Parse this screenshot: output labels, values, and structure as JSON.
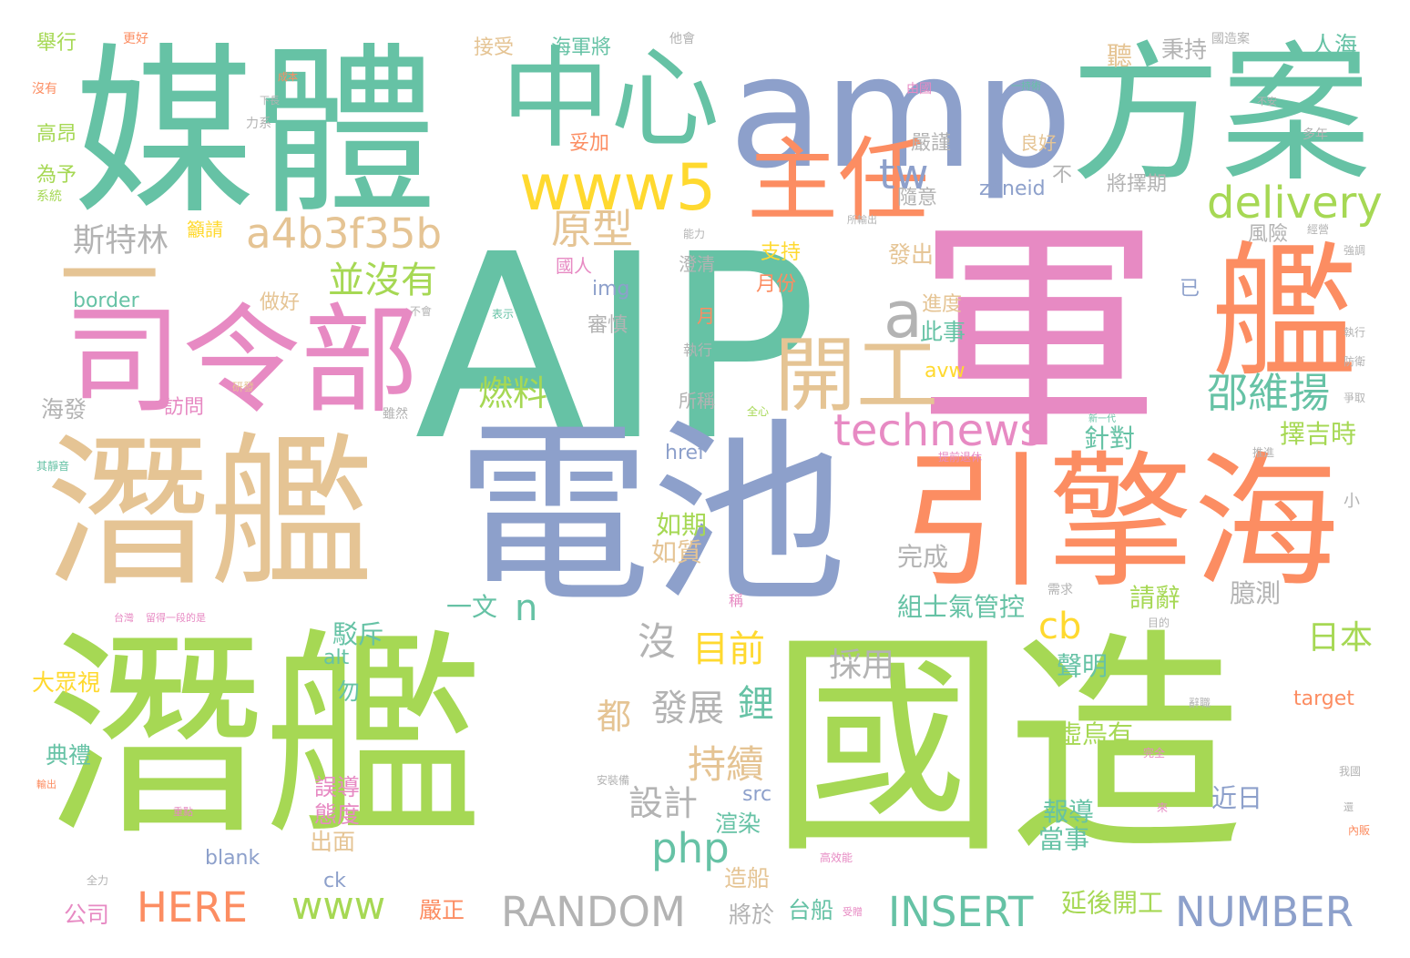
{
  "palette": {
    "teal": "#66c2a5",
    "orange": "#fc8d62",
    "blue": "#8da0cb",
    "pink": "#e78ac3",
    "green": "#a6d854",
    "yellow": "#ffd92f",
    "tan": "#e5c494",
    "gray": "#b3b3b3"
  },
  "words": [
    {
      "text": "AIP",
      "color": "#66c2a5"
    },
    {
      "text": "軍",
      "color": "#e78ac3"
    },
    {
      "text": "國造",
      "color": "#a6d854"
    },
    {
      "text": "潛艦",
      "color": "#a6d854"
    },
    {
      "text": "電池",
      "color": "#8da0cb"
    },
    {
      "text": "潛艦",
      "color": "#e5c494"
    },
    {
      "text": "媒體",
      "color": "#66c2a5"
    },
    {
      "text": "amp",
      "color": "#8da0cb"
    },
    {
      "text": "方案",
      "color": "#66c2a5"
    },
    {
      "text": "引擎海",
      "color": "#fc8d62"
    },
    {
      "text": "艦",
      "color": "#fc8d62"
    },
    {
      "text": "一",
      "color": "#e5c494"
    },
    {
      "text": "司令部",
      "color": "#e78ac3"
    },
    {
      "text": "中心",
      "color": "#66c2a5"
    },
    {
      "text": "主任",
      "color": "#fc8d62"
    },
    {
      "text": "www5",
      "color": "#ffd92f"
    },
    {
      "text": "開工",
      "color": "#e5c494"
    },
    {
      "text": "a",
      "color": "#b3b3b3"
    },
    {
      "text": "a4b3f35b",
      "color": "#e5c494"
    },
    {
      "text": "delivery",
      "color": "#a6d854"
    },
    {
      "text": "technews",
      "color": "#e78ac3"
    },
    {
      "text": "邵維揚",
      "color": "#66c2a5"
    },
    {
      "text": "原型",
      "color": "#e5c494"
    },
    {
      "text": "並沒有",
      "color": "#a6d854"
    },
    {
      "text": "斯特林",
      "color": "#b3b3b3"
    },
    {
      "text": "tw",
      "color": "#8da0cb"
    },
    {
      "text": "RANDOM",
      "color": "#b3b3b3"
    },
    {
      "text": "NUMBER",
      "color": "#8da0cb"
    },
    {
      "text": "INSERT",
      "color": "#66c2a5"
    },
    {
      "text": "HERE",
      "color": "#fc8d62"
    },
    {
      "text": "www",
      "color": "#a6d854"
    },
    {
      "text": "php",
      "color": "#66c2a5"
    },
    {
      "text": "cb",
      "color": "#ffd92f"
    },
    {
      "text": "持續",
      "color": "#e5c494"
    },
    {
      "text": "發展",
      "color": "#b3b3b3"
    },
    {
      "text": "鋰",
      "color": "#66c2a5"
    },
    {
      "text": "設計",
      "color": "#b3b3b3"
    },
    {
      "text": "目前",
      "color": "#ffd92f"
    },
    {
      "text": "沒",
      "color": "#b3b3b3"
    },
    {
      "text": "燃料",
      "color": "#a6d854"
    },
    {
      "text": "都",
      "color": "#e5c494"
    },
    {
      "text": "採用",
      "color": "#b3b3b3"
    },
    {
      "text": "n",
      "color": "#66c2a5"
    },
    {
      "text": "日本",
      "color": "#a6d854"
    },
    {
      "text": "擇吉時",
      "color": "#a6d854"
    },
    {
      "text": "針對",
      "color": "#66c2a5"
    },
    {
      "text": "延後開工",
      "color": "#a6d854"
    },
    {
      "text": "組士氣管控",
      "color": "#66c2a5"
    },
    {
      "text": "虛烏有",
      "color": "#a6d854"
    },
    {
      "text": "近日",
      "color": "#8da0cb"
    },
    {
      "text": "請辭",
      "color": "#a6d854"
    },
    {
      "text": "臆測",
      "color": "#b3b3b3"
    },
    {
      "text": "報導",
      "color": "#66c2a5"
    },
    {
      "text": "當事",
      "color": "#66c2a5"
    },
    {
      "text": "聲明",
      "color": "#66c2a5"
    },
    {
      "text": "完成",
      "color": "#b3b3b3"
    },
    {
      "text": "如期",
      "color": "#a6d854"
    },
    {
      "text": "如質",
      "color": "#e5c494"
    },
    {
      "text": "一文",
      "color": "#66c2a5"
    },
    {
      "text": "駁斥",
      "color": "#66c2a5"
    },
    {
      "text": "誤導",
      "color": "#e78ac3"
    },
    {
      "text": "態度",
      "color": "#e78ac3"
    },
    {
      "text": "出面",
      "color": "#e5c494"
    },
    {
      "text": "渲染",
      "color": "#66c2a5"
    },
    {
      "text": "造船",
      "color": "#e5c494"
    },
    {
      "text": "台船",
      "color": "#66c2a5"
    },
    {
      "text": "將於",
      "color": "#b3b3b3"
    },
    {
      "text": "嚴正",
      "color": "#fc8d62"
    },
    {
      "text": "公司",
      "color": "#e78ac3"
    },
    {
      "text": "典禮",
      "color": "#66c2a5"
    },
    {
      "text": "大眾視",
      "color": "#ffd92f"
    },
    {
      "text": "勿",
      "color": "#66c2a5"
    },
    {
      "text": "alt",
      "color": "#66c2a5"
    },
    {
      "text": "src",
      "color": "#8da0cb"
    },
    {
      "text": "ck",
      "color": "#8da0cb"
    },
    {
      "text": "blank",
      "color": "#8da0cb"
    },
    {
      "text": "href",
      "color": "#8da0cb"
    },
    {
      "text": "target",
      "color": "#fc8d62"
    },
    {
      "text": "avw",
      "color": "#ffd92f"
    },
    {
      "text": "img",
      "color": "#8da0cb"
    },
    {
      "text": "border",
      "color": "#66c2a5"
    },
    {
      "text": "zoneid",
      "color": "#8da0cb"
    },
    {
      "text": "海發",
      "color": "#b3b3b3"
    },
    {
      "text": "訪問",
      "color": "#e78ac3"
    },
    {
      "text": "做好",
      "color": "#e5c494"
    },
    {
      "text": "審慎",
      "color": "#b3b3b3"
    },
    {
      "text": "月份",
      "color": "#fc8d62"
    },
    {
      "text": "支持",
      "color": "#ffd92f"
    },
    {
      "text": "國人",
      "color": "#e78ac3"
    },
    {
      "text": "澄清",
      "color": "#b3b3b3"
    },
    {
      "text": "月",
      "color": "#fc8d62"
    },
    {
      "text": "執行",
      "color": "#b3b3b3"
    },
    {
      "text": "所稱",
      "color": "#b3b3b3"
    },
    {
      "text": "此事",
      "color": "#66c2a5"
    },
    {
      "text": "進度",
      "color": "#e5c494"
    },
    {
      "text": "發出",
      "color": "#e5c494"
    },
    {
      "text": "隨意",
      "color": "#b3b3b3"
    },
    {
      "text": "嚴謹",
      "color": "#b3b3b3"
    },
    {
      "text": "不",
      "color": "#b3b3b3"
    },
    {
      "text": "已",
      "color": "#8da0cb"
    },
    {
      "text": "風險",
      "color": "#b3b3b3"
    },
    {
      "text": "將擇期",
      "color": "#b3b3b3"
    },
    {
      "text": "良好",
      "color": "#e5c494"
    },
    {
      "text": "秉持",
      "color": "#b3b3b3"
    },
    {
      "text": "聽",
      "color": "#e5c494"
    },
    {
      "text": "人海",
      "color": "#66c2a5"
    },
    {
      "text": "海軍將",
      "color": "#66c2a5"
    },
    {
      "text": "接受",
      "color": "#e5c494"
    },
    {
      "text": "妥加",
      "color": "#fc8d62"
    },
    {
      "text": "舉行",
      "color": "#a6d854"
    },
    {
      "text": "高昂",
      "color": "#a6d854"
    },
    {
      "text": "為予",
      "color": "#a6d854"
    },
    {
      "text": "籲請",
      "color": "#ffd92f"
    },
    {
      "text": "小",
      "color": "#b3b3b3"
    },
    {
      "text": "多年",
      "color": "#b3b3b3"
    },
    {
      "text": "更好",
      "color": "#fc8d62"
    },
    {
      "text": "他會",
      "color": "#b3b3b3"
    },
    {
      "text": "國造案",
      "color": "#b3b3b3"
    },
    {
      "text": "沒有",
      "color": "#fc8d62"
    },
    {
      "text": "系統",
      "color": "#a6d854"
    },
    {
      "text": "研發",
      "color": "#e5c494"
    },
    {
      "text": "雖然",
      "color": "#b3b3b3"
    },
    {
      "text": "稱",
      "color": "#e78ac3"
    },
    {
      "text": "全力",
      "color": "#b3b3b3"
    },
    {
      "text": "高效能",
      "color": "#e78ac3"
    },
    {
      "text": "安裝備",
      "color": "#b3b3b3"
    },
    {
      "text": "完全",
      "color": "#e78ac3"
    },
    {
      "text": "我國",
      "color": "#b3b3b3"
    },
    {
      "text": "不會",
      "color": "#b3b3b3"
    },
    {
      "text": "表示",
      "color": "#66c2a5"
    },
    {
      "text": "目的",
      "color": "#b3b3b3"
    },
    {
      "text": "辭職",
      "color": "#b3b3b3"
    },
    {
      "text": "防衛",
      "color": "#b3b3b3"
    },
    {
      "text": "爭取",
      "color": "#b3b3b3"
    },
    {
      "text": "推進",
      "color": "#b3b3b3"
    },
    {
      "text": "強調",
      "color": "#b3b3b3"
    },
    {
      "text": "經營",
      "color": "#b3b3b3"
    },
    {
      "text": "能力",
      "color": "#b3b3b3"
    },
    {
      "text": "所輸出",
      "color": "#b3b3b3"
    },
    {
      "text": "由國",
      "color": "#e78ac3"
    },
    {
      "text": "力系",
      "color": "#b3b3b3"
    },
    {
      "text": "成本",
      "color": "#fc8d62"
    },
    {
      "text": "下長",
      "color": "#b3b3b3"
    },
    {
      "text": "執行",
      "color": "#b3b3b3"
    },
    {
      "text": "一持術",
      "color": "#66c2a5"
    },
    {
      "text": "不安",
      "color": "#b3b3b3"
    },
    {
      "text": "全心",
      "color": "#a6d854"
    },
    {
      "text": "提前退休",
      "color": "#e78ac3"
    },
    {
      "text": "新一代",
      "color": "#66c2a5"
    },
    {
      "text": "需求",
      "color": "#b3b3b3"
    },
    {
      "text": "內販",
      "color": "#fc8d62"
    },
    {
      "text": "還",
      "color": "#b3b3b3"
    },
    {
      "text": "來",
      "color": "#e78ac3"
    },
    {
      "text": "受贈",
      "color": "#e78ac3"
    },
    {
      "text": "其靜音",
      "color": "#66c2a5"
    },
    {
      "text": "留得一段的是",
      "color": "#e78ac3"
    },
    {
      "text": "台灣",
      "color": "#e78ac3"
    },
    {
      "text": "重點",
      "color": "#e78ac3"
    },
    {
      "text": "輸出",
      "color": "#fc8d62"
    }
  ]
}
